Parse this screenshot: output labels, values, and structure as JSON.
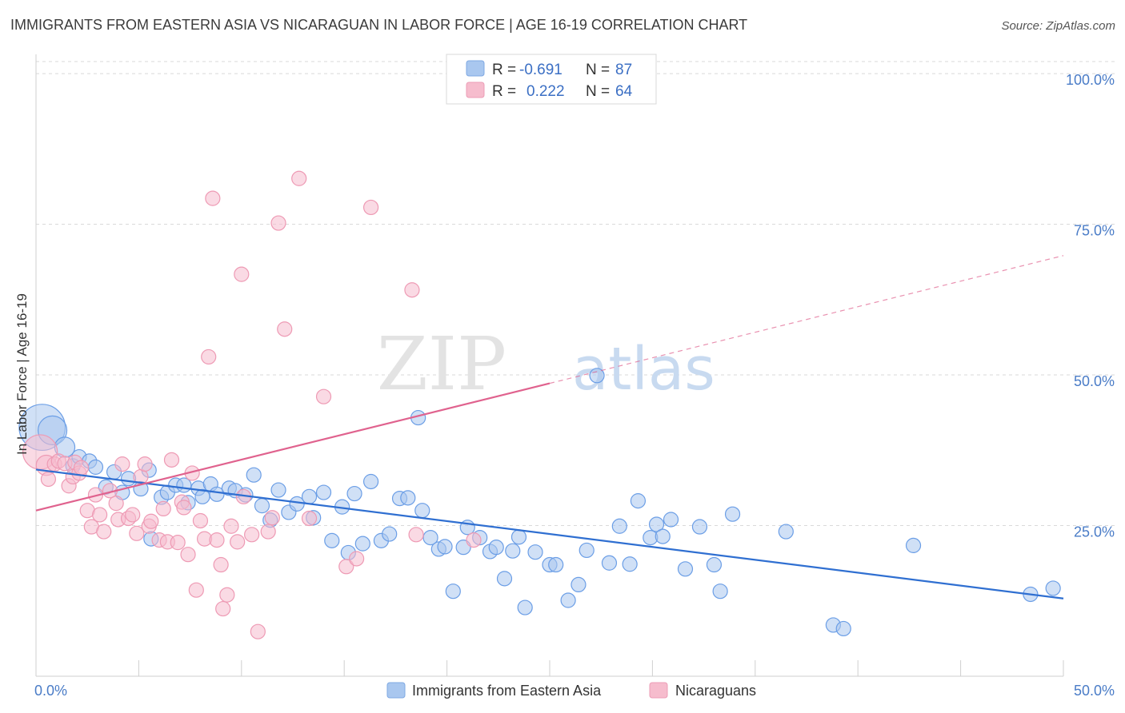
{
  "title": "IMMIGRANTS FROM EASTERN ASIA VS NICARAGUAN IN LABOR FORCE | AGE 16-19 CORRELATION CHART",
  "source": "Source: ZipAtlas.com",
  "watermark": {
    "zip": "ZIP",
    "atlas": "atlas"
  },
  "legend": {
    "rows": [
      {
        "r_label": "R =",
        "r_value": "-0.691",
        "n_label": "N =",
        "n_value": "87",
        "color": "#a9c7ef"
      },
      {
        "r_label": "R =",
        "r_value": "0.222",
        "n_label": "N =",
        "n_value": "64",
        "color": "#f6bccd"
      }
    ]
  },
  "bottom_legend": [
    {
      "label": "Immigrants from Eastern Asia",
      "color": "#a9c7ef"
    },
    {
      "label": "Nicaraguans",
      "color": "#f6bccd"
    }
  ],
  "chart_data": {
    "type": "scatter",
    "title": "IMMIGRANTS FROM EASTERN ASIA VS NICARAGUAN IN LABOR FORCE | AGE 16-19 CORRELATION CHART",
    "xlabel": "",
    "ylabel": "In Labor Force | Age 16-19",
    "xlim": [
      0,
      50
    ],
    "ylim": [
      0,
      102
    ],
    "x_tick_labels": [
      {
        "value": 0,
        "label": "0.0%"
      },
      {
        "value": 50,
        "label": "50.0%"
      }
    ],
    "y_tick_labels": [
      {
        "value": 25,
        "label": "25.0%"
      },
      {
        "value": 50,
        "label": "50.0%"
      },
      {
        "value": 75,
        "label": "75.0%"
      },
      {
        "value": 100,
        "label": "100.0%"
      }
    ],
    "grid": true,
    "legend_position": "top-center",
    "series": [
      {
        "name": "Immigrants from Eastern Asia",
        "color": "#6b9ee6",
        "fill": "#a9c7ef",
        "line_color": "#2f6fd1",
        "trend": {
          "x": [
            0,
            50
          ],
          "y": [
            34.3,
            12.9
          ],
          "dashed_extension": false
        },
        "points": [
          {
            "x": 0.3,
            "y": 41.3,
            "s": 3.2
          },
          {
            "x": 0.8,
            "y": 40.8,
            "s": 2.0
          },
          {
            "x": 1.4,
            "y": 38.0,
            "s": 1.4
          },
          {
            "x": 1.8,
            "y": 34.9,
            "s": 1.0
          },
          {
            "x": 2.1,
            "y": 36.4,
            "s": 1.0
          },
          {
            "x": 2.6,
            "y": 35.7,
            "s": 1.0
          },
          {
            "x": 2.9,
            "y": 34.7,
            "s": 1.0
          },
          {
            "x": 3.4,
            "y": 31.4,
            "s": 1.0
          },
          {
            "x": 3.8,
            "y": 33.9,
            "s": 1.0
          },
          {
            "x": 4.2,
            "y": 30.5,
            "s": 1.0
          },
          {
            "x": 4.5,
            "y": 32.8,
            "s": 1.0
          },
          {
            "x": 5.1,
            "y": 31.1,
            "s": 1.0
          },
          {
            "x": 5.5,
            "y": 34.2,
            "s": 1.0
          },
          {
            "x": 5.6,
            "y": 22.8,
            "s": 1.0
          },
          {
            "x": 6.1,
            "y": 29.7,
            "s": 1.0
          },
          {
            "x": 6.4,
            "y": 30.5,
            "s": 1.0
          },
          {
            "x": 6.8,
            "y": 31.7,
            "s": 1.0
          },
          {
            "x": 7.2,
            "y": 31.7,
            "s": 1.0
          },
          {
            "x": 7.4,
            "y": 28.8,
            "s": 1.0
          },
          {
            "x": 7.9,
            "y": 31.2,
            "s": 1.0
          },
          {
            "x": 8.1,
            "y": 29.8,
            "s": 1.0
          },
          {
            "x": 8.5,
            "y": 31.9,
            "s": 1.0
          },
          {
            "x": 8.8,
            "y": 30.2,
            "s": 1.0
          },
          {
            "x": 9.4,
            "y": 31.2,
            "s": 1.0
          },
          {
            "x": 9.7,
            "y": 30.8,
            "s": 1.0
          },
          {
            "x": 10.2,
            "y": 30.1,
            "s": 1.0
          },
          {
            "x": 10.6,
            "y": 33.4,
            "s": 1.0
          },
          {
            "x": 11.0,
            "y": 28.3,
            "s": 1.0
          },
          {
            "x": 11.4,
            "y": 25.9,
            "s": 1.0
          },
          {
            "x": 11.8,
            "y": 30.9,
            "s": 1.0
          },
          {
            "x": 12.3,
            "y": 27.2,
            "s": 1.0
          },
          {
            "x": 12.7,
            "y": 28.6,
            "s": 1.0
          },
          {
            "x": 13.3,
            "y": 29.8,
            "s": 1.0
          },
          {
            "x": 13.5,
            "y": 26.3,
            "s": 1.0
          },
          {
            "x": 14.0,
            "y": 30.5,
            "s": 1.0
          },
          {
            "x": 14.4,
            "y": 22.5,
            "s": 1.0
          },
          {
            "x": 14.9,
            "y": 28.1,
            "s": 1.0
          },
          {
            "x": 15.2,
            "y": 20.5,
            "s": 1.0
          },
          {
            "x": 15.5,
            "y": 30.3,
            "s": 1.0
          },
          {
            "x": 15.9,
            "y": 22.0,
            "s": 1.0
          },
          {
            "x": 16.3,
            "y": 32.3,
            "s": 1.0
          },
          {
            "x": 16.8,
            "y": 22.5,
            "s": 1.0
          },
          {
            "x": 17.2,
            "y": 23.6,
            "s": 1.0
          },
          {
            "x": 17.7,
            "y": 29.5,
            "s": 1.0
          },
          {
            "x": 18.1,
            "y": 29.6,
            "s": 1.0
          },
          {
            "x": 18.6,
            "y": 42.9,
            "s": 1.0
          },
          {
            "x": 18.8,
            "y": 27.5,
            "s": 1.0
          },
          {
            "x": 19.2,
            "y": 23.0,
            "s": 1.0
          },
          {
            "x": 19.6,
            "y": 21.1,
            "s": 1.0
          },
          {
            "x": 19.9,
            "y": 21.5,
            "s": 1.0
          },
          {
            "x": 20.3,
            "y": 14.1,
            "s": 1.0
          },
          {
            "x": 20.8,
            "y": 21.4,
            "s": 1.0
          },
          {
            "x": 21.0,
            "y": 24.7,
            "s": 1.0
          },
          {
            "x": 21.6,
            "y": 23.0,
            "s": 1.0
          },
          {
            "x": 22.1,
            "y": 20.7,
            "s": 1.0
          },
          {
            "x": 22.4,
            "y": 21.4,
            "s": 1.0
          },
          {
            "x": 22.8,
            "y": 16.2,
            "s": 1.0
          },
          {
            "x": 23.2,
            "y": 20.8,
            "s": 1.0
          },
          {
            "x": 23.5,
            "y": 23.1,
            "s": 1.0
          },
          {
            "x": 23.8,
            "y": 11.4,
            "s": 1.0
          },
          {
            "x": 24.3,
            "y": 20.6,
            "s": 1.0
          },
          {
            "x": 25.0,
            "y": 18.5,
            "s": 1.0
          },
          {
            "x": 25.3,
            "y": 18.5,
            "s": 1.0
          },
          {
            "x": 25.9,
            "y": 12.6,
            "s": 1.0
          },
          {
            "x": 26.4,
            "y": 15.2,
            "s": 1.0
          },
          {
            "x": 26.8,
            "y": 20.9,
            "s": 1.0
          },
          {
            "x": 27.3,
            "y": 49.9,
            "s": 1.0
          },
          {
            "x": 27.9,
            "y": 18.8,
            "s": 1.0
          },
          {
            "x": 28.4,
            "y": 24.9,
            "s": 1.0
          },
          {
            "x": 28.9,
            "y": 18.6,
            "s": 1.0
          },
          {
            "x": 29.3,
            "y": 29.1,
            "s": 1.0
          },
          {
            "x": 29.9,
            "y": 23.0,
            "s": 1.0
          },
          {
            "x": 30.2,
            "y": 25.2,
            "s": 1.0
          },
          {
            "x": 30.5,
            "y": 23.2,
            "s": 1.0
          },
          {
            "x": 30.9,
            "y": 26.0,
            "s": 1.0
          },
          {
            "x": 31.6,
            "y": 17.8,
            "s": 1.0
          },
          {
            "x": 32.3,
            "y": 24.8,
            "s": 1.0
          },
          {
            "x": 33.0,
            "y": 18.5,
            "s": 1.0
          },
          {
            "x": 33.3,
            "y": 14.1,
            "s": 1.0
          },
          {
            "x": 33.9,
            "y": 26.9,
            "s": 1.0
          },
          {
            "x": 36.5,
            "y": 24.0,
            "s": 1.0
          },
          {
            "x": 38.8,
            "y": 8.5,
            "s": 1.0
          },
          {
            "x": 39.3,
            "y": 7.9,
            "s": 1.0
          },
          {
            "x": 42.7,
            "y": 21.7,
            "s": 1.0
          },
          {
            "x": 48.4,
            "y": 13.6,
            "s": 1.0
          },
          {
            "x": 49.5,
            "y": 14.6,
            "s": 1.0
          }
        ]
      },
      {
        "name": "Nicaraguans",
        "color": "#ee9ab4",
        "fill": "#f6bccd",
        "line_color": "#e0628e",
        "trend": {
          "x": [
            0,
            25
          ],
          "y": [
            27.5,
            48.6
          ],
          "dashed_to": {
            "x": 50,
            "y": 69.8
          }
        },
        "points": [
          {
            "x": 0.2,
            "y": 37.2,
            "s": 2.4
          },
          {
            "x": 0.5,
            "y": 35.0,
            "s": 1.4
          },
          {
            "x": 0.6,
            "y": 32.7,
            "s": 1.0
          },
          {
            "x": 0.9,
            "y": 35.2,
            "s": 1.0
          },
          {
            "x": 1.1,
            "y": 35.7,
            "s": 1.0
          },
          {
            "x": 1.4,
            "y": 35.3,
            "s": 1.0
          },
          {
            "x": 1.6,
            "y": 31.6,
            "s": 1.0
          },
          {
            "x": 1.8,
            "y": 33.1,
            "s": 1.0
          },
          {
            "x": 1.9,
            "y": 35.5,
            "s": 1.0
          },
          {
            "x": 2.1,
            "y": 33.7,
            "s": 1.0
          },
          {
            "x": 2.2,
            "y": 34.6,
            "s": 1.0
          },
          {
            "x": 2.5,
            "y": 27.5,
            "s": 1.0
          },
          {
            "x": 2.7,
            "y": 24.8,
            "s": 1.0
          },
          {
            "x": 2.9,
            "y": 30.1,
            "s": 1.0
          },
          {
            "x": 3.1,
            "y": 26.8,
            "s": 1.0
          },
          {
            "x": 3.3,
            "y": 24.0,
            "s": 1.0
          },
          {
            "x": 3.6,
            "y": 30.8,
            "s": 1.0
          },
          {
            "x": 3.9,
            "y": 28.7,
            "s": 1.0
          },
          {
            "x": 4.0,
            "y": 26.0,
            "s": 1.0
          },
          {
            "x": 4.2,
            "y": 35.2,
            "s": 1.0
          },
          {
            "x": 4.5,
            "y": 26.2,
            "s": 1.0
          },
          {
            "x": 4.7,
            "y": 26.8,
            "s": 1.0
          },
          {
            "x": 4.9,
            "y": 23.7,
            "s": 1.0
          },
          {
            "x": 5.1,
            "y": 33.1,
            "s": 1.0
          },
          {
            "x": 5.3,
            "y": 35.2,
            "s": 1.0
          },
          {
            "x": 5.5,
            "y": 24.9,
            "s": 1.0
          },
          {
            "x": 5.6,
            "y": 25.7,
            "s": 1.0
          },
          {
            "x": 6.0,
            "y": 22.6,
            "s": 1.0
          },
          {
            "x": 6.2,
            "y": 27.8,
            "s": 1.0
          },
          {
            "x": 6.4,
            "y": 22.3,
            "s": 1.0
          },
          {
            "x": 6.6,
            "y": 35.9,
            "s": 1.0
          },
          {
            "x": 6.9,
            "y": 22.2,
            "s": 1.0
          },
          {
            "x": 7.1,
            "y": 28.9,
            "s": 1.0
          },
          {
            "x": 7.2,
            "y": 28.0,
            "s": 1.0
          },
          {
            "x": 7.4,
            "y": 20.2,
            "s": 1.0
          },
          {
            "x": 7.6,
            "y": 33.7,
            "s": 1.0
          },
          {
            "x": 7.8,
            "y": 14.3,
            "s": 1.0
          },
          {
            "x": 8.0,
            "y": 25.8,
            "s": 1.0
          },
          {
            "x": 8.2,
            "y": 22.8,
            "s": 1.0
          },
          {
            "x": 8.4,
            "y": 53.0,
            "s": 1.0
          },
          {
            "x": 8.6,
            "y": 79.3,
            "s": 1.0
          },
          {
            "x": 8.8,
            "y": 22.6,
            "s": 1.0
          },
          {
            "x": 9.0,
            "y": 18.5,
            "s": 1.0
          },
          {
            "x": 9.1,
            "y": 11.2,
            "s": 1.0
          },
          {
            "x": 9.3,
            "y": 13.5,
            "s": 1.0
          },
          {
            "x": 9.5,
            "y": 24.9,
            "s": 1.0
          },
          {
            "x": 9.8,
            "y": 22.3,
            "s": 1.0
          },
          {
            "x": 10.0,
            "y": 66.7,
            "s": 1.0
          },
          {
            "x": 10.1,
            "y": 29.8,
            "s": 1.0
          },
          {
            "x": 10.5,
            "y": 23.5,
            "s": 1.0
          },
          {
            "x": 10.8,
            "y": 7.4,
            "s": 1.0
          },
          {
            "x": 11.3,
            "y": 24.0,
            "s": 1.0
          },
          {
            "x": 11.5,
            "y": 26.3,
            "s": 1.0
          },
          {
            "x": 11.8,
            "y": 75.2,
            "s": 1.0
          },
          {
            "x": 12.1,
            "y": 57.6,
            "s": 1.0
          },
          {
            "x": 12.8,
            "y": 82.6,
            "s": 1.0
          },
          {
            "x": 13.3,
            "y": 26.2,
            "s": 1.0
          },
          {
            "x": 14.0,
            "y": 46.4,
            "s": 1.0
          },
          {
            "x": 15.1,
            "y": 18.2,
            "s": 1.0
          },
          {
            "x": 15.6,
            "y": 19.5,
            "s": 1.0
          },
          {
            "x": 16.3,
            "y": 77.8,
            "s": 1.0
          },
          {
            "x": 18.3,
            "y": 64.1,
            "s": 1.0
          },
          {
            "x": 18.5,
            "y": 23.5,
            "s": 1.0
          },
          {
            "x": 21.3,
            "y": 22.6,
            "s": 1.0
          }
        ]
      }
    ]
  }
}
